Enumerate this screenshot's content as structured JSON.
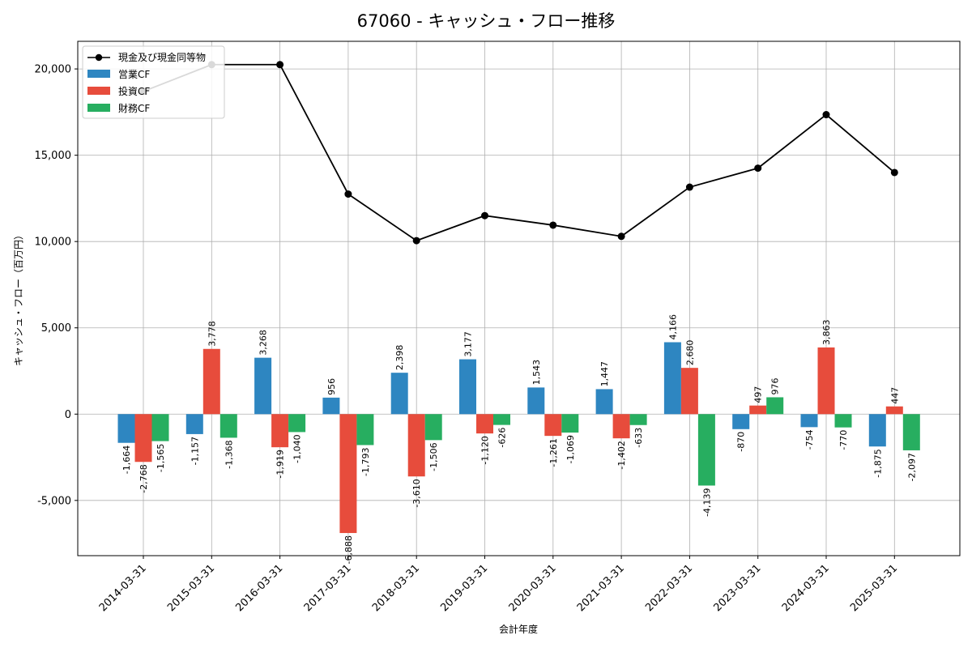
{
  "chart_data": {
    "type": "bar+line",
    "title": "67060 - キャッシュ・フロー推移",
    "xlabel": "会計年度",
    "ylabel": "キャッシュ・フロー（百万円）",
    "ylim": [
      -8200,
      21600
    ],
    "yticks": [
      -5000,
      0,
      5000,
      10000,
      15000,
      20000
    ],
    "ytick_labels": [
      "-5,000",
      "0",
      "5,000",
      "10,000",
      "15,000",
      "20,000"
    ],
    "grid": true,
    "legend_position": "top-left",
    "categories": [
      "2014-03-31",
      "2015-03-31",
      "2016-03-31",
      "2017-03-31",
      "2018-03-31",
      "2019-03-31",
      "2020-03-31",
      "2021-03-31",
      "2022-03-31",
      "2023-03-31",
      "2024-03-31",
      "2025-03-31"
    ],
    "series": [
      {
        "name": "営業CF",
        "type": "bar",
        "color": "#2e86c1",
        "values": [
          -1664,
          -1157,
          3268,
          956,
          2398,
          3177,
          1543,
          1447,
          4166,
          -870,
          -754,
          -1875
        ],
        "labels": [
          "-1,664",
          "-1,157",
          "3,268",
          "956",
          "2,398",
          "3,177",
          "1,543",
          "1,447",
          "4,166",
          "-870",
          "-754",
          "-1,875"
        ]
      },
      {
        "name": "投資CF",
        "type": "bar",
        "color": "#e74c3c",
        "values": [
          -2768,
          3778,
          -1919,
          -6888,
          -3610,
          -1120,
          -1261,
          -1402,
          2680,
          497,
          3863,
          447
        ],
        "labels": [
          "-2,768",
          "3,778",
          "-1,919",
          "-6,888",
          "-3,610",
          "-1,120",
          "-1,261",
          "-1,402",
          "2,680",
          "497",
          "3,863",
          "447"
        ]
      },
      {
        "name": "財務CF",
        "type": "bar",
        "color": "#27ae60",
        "values": [
          -1565,
          -1368,
          -1040,
          -1793,
          -1506,
          -626,
          -1069,
          -633,
          -4139,
          976,
          -770,
          -2097
        ],
        "labels": [
          "-1,565",
          "-1,368",
          "-1,040",
          "-1,793",
          "-1,506",
          "-626",
          "-1,069",
          "-633",
          "-4,139",
          "976",
          "-770",
          "-2,097"
        ]
      },
      {
        "name": "現金及び現金同等物",
        "type": "line",
        "color": "#000000",
        "values": [
          18700,
          20250,
          20250,
          12750,
          10050,
          11500,
          10950,
          10300,
          13150,
          14250,
          17350,
          14000
        ]
      }
    ]
  }
}
